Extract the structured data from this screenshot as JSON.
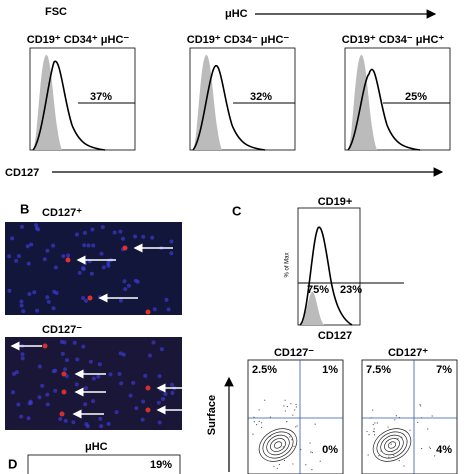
{
  "top": {
    "fsc": "FSC",
    "uhc": "μHC"
  },
  "panel_a": {
    "histograms": [
      {
        "title": "CD19⁺ CD34⁺ μHC⁻",
        "percent": "37%"
      },
      {
        "title": "CD19⁺ CD34⁻ μHC⁻",
        "percent": "32%"
      },
      {
        "title": "CD19⁺ CD34⁻ μHC⁺",
        "percent": "25%"
      }
    ],
    "axis_label": "CD127"
  },
  "panel_b": {
    "letter": "B",
    "images": [
      {
        "title": "CD127⁺"
      },
      {
        "title": "CD127⁻"
      }
    ],
    "axis_label": "μHC"
  },
  "panel_c": {
    "letter": "C",
    "histogram": {
      "title": "CD19+",
      "y_label": "% of Max",
      "left": "75%",
      "right": "23%",
      "x_label": "CD127"
    },
    "quadrants": [
      {
        "title": "CD127⁻",
        "ul": "2.5%",
        "ur": "1%",
        "lr": "0%"
      },
      {
        "title": "CD127⁺",
        "ul": "7.5%",
        "ur": "7%",
        "lr": "4%"
      }
    ],
    "y_label": "Surface"
  },
  "panel_d": {
    "letter": "D",
    "percent": "19%"
  }
}
